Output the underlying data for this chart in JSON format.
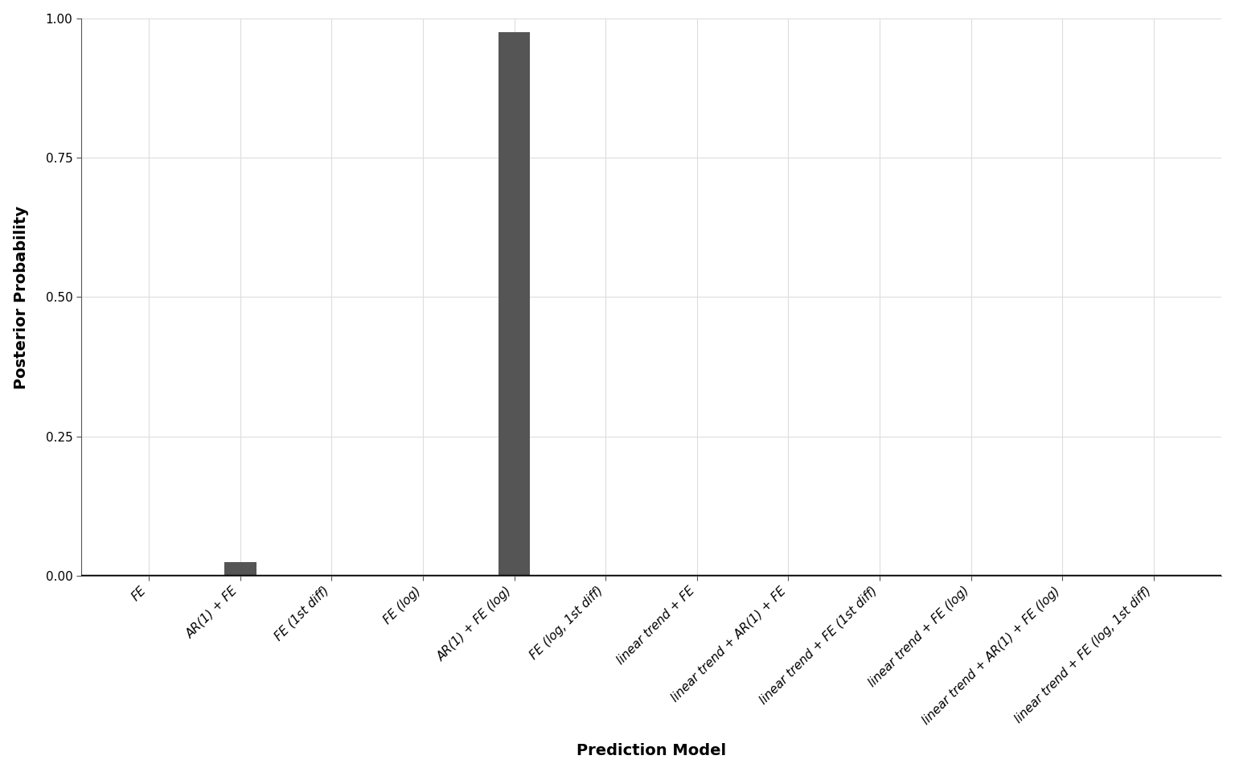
{
  "xlabel": "Prediction Model",
  "ylabel": "Posterior Probability",
  "categories": [
    "FE",
    "AR(1) + FE",
    "FE (1st diff)",
    "FE (log)",
    "AR(1) + FE (log)",
    "FE (log, 1st diff)",
    "linear trend + FE",
    "linear trend + AR(1) + FE",
    "linear trend + FE (1st diff)",
    "linear trend + FE (log)",
    "linear trend + AR(1) + FE (log)",
    "linear trend + FE (log, 1st diff)"
  ],
  "values": [
    0.0,
    0.025,
    0.0,
    0.0,
    0.975,
    0.0,
    0.0,
    0.0,
    0.0,
    0.0,
    0.0,
    0.0
  ],
  "bar_color": "#555555",
  "background_color": "#ffffff",
  "grid_color": "#dddddd",
  "ylim": [
    0,
    1.0
  ],
  "yticks": [
    0.0,
    0.25,
    0.5,
    0.75,
    1.0
  ],
  "ytick_labels": [
    "0.00",
    "0.25",
    "0.50",
    "0.75",
    "1.00"
  ],
  "bar_width": 0.35,
  "title_fontsize": 15,
  "label_fontsize": 14,
  "tick_fontsize": 11,
  "spine_color": "#555555",
  "axhline_color": "#000000",
  "axhline_lw": 2.5
}
